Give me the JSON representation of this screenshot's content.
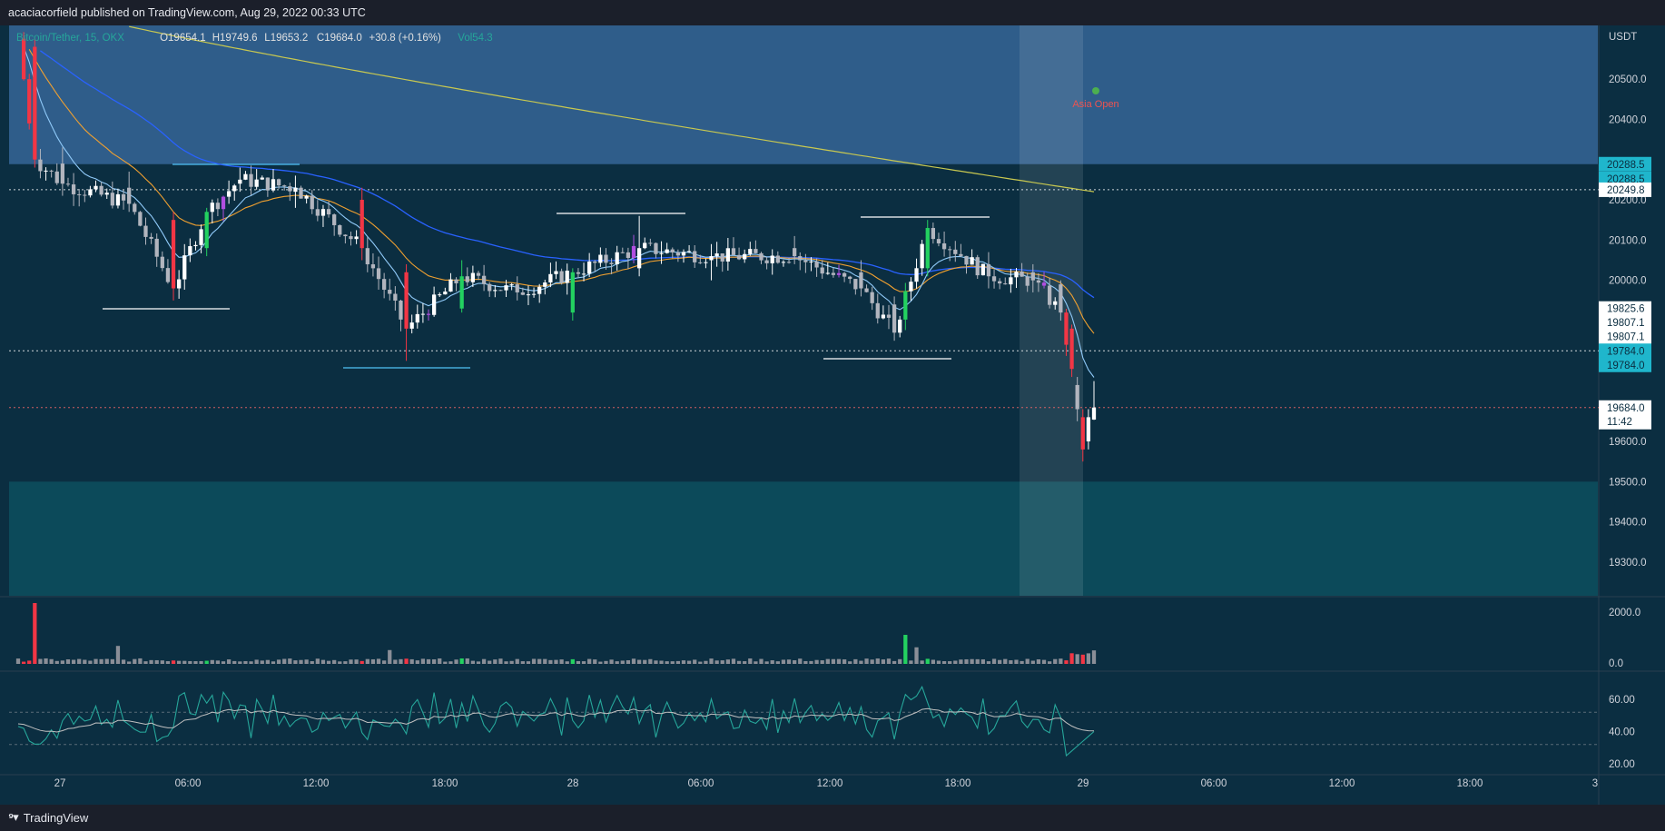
{
  "header": {
    "published_by": "acaciacorfield published on TradingView.com, Aug 29, 2022 00:33 UTC"
  },
  "footer": {
    "brand": "TradingView",
    "logo_icon": "tradingview-logo-icon"
  },
  "colors": {
    "background": "#0b2e41",
    "top_zone": "#2f5d8a",
    "bottom_zone": "#0c4a5a",
    "session_highlight": "#3a5566",
    "bull": "#23d160",
    "bear": "#f23645",
    "neutral": "#b2b5be",
    "white": "#ffffff",
    "purple": "#b14fe0",
    "ema_fast": "#90caf9",
    "ema_mid": "#f0a030",
    "ema_slow": "#2962ff",
    "ema_long": "#c8c850",
    "rsi_line": "#26a69a",
    "rsi_ma": "#c0c0c0",
    "axis_text": "#d1d4dc",
    "badge_cyan": "#1fb6cc"
  },
  "legend": {
    "symbol": "Bitcoin/Tether, 15, OKX",
    "open_label": "O",
    "open": "19654.1",
    "high_label": "H",
    "high": "19749.6",
    "low_label": "L",
    "low": "19653.2",
    "close_label": "C",
    "close": "19684.0",
    "change": "+30.8 (+0.16%)",
    "vol_label": "Vol",
    "vol": "54.3"
  },
  "annotation": {
    "label": "Asia Open"
  },
  "price_axis": {
    "unit": "USDT",
    "ticks": [
      "20500.0",
      "20400.0",
      "20200.0",
      "20100.0",
      "20000.0",
      "19600.0",
      "19500.0",
      "19400.0",
      "19300.0"
    ],
    "badges": [
      {
        "text": "20288.5",
        "price": 20288.5,
        "style": "cyan"
      },
      {
        "text": "20288.5",
        "price": 20252.0,
        "style": "cyan"
      },
      {
        "text": "20249.8",
        "price": 20225.0,
        "style": "white"
      },
      {
        "text": "19825.6",
        "price": 19930.0,
        "style": "white"
      },
      {
        "text": "19807.1",
        "price": 19895.0,
        "style": "white"
      },
      {
        "text": "19807.1",
        "price": 19860.0,
        "style": "white"
      },
      {
        "text": "19784.0",
        "price": 19825.0,
        "style": "cyan"
      },
      {
        "text": "19784.0",
        "price": 19790.0,
        "style": "cyan"
      }
    ],
    "last_price": "19684.0",
    "countdown": "11:42"
  },
  "volume_axis": {
    "ticks": [
      "2000.0",
      "0.0"
    ]
  },
  "rsi_axis": {
    "ticks": [
      "60.00",
      "40.00",
      "20.00"
    ]
  },
  "time_axis": {
    "ticks": [
      "27",
      "06:00",
      "12:00",
      "18:00",
      "28",
      "06:00",
      "12:00",
      "18:00",
      "29",
      "06:00",
      "12:00",
      "18:00",
      "3"
    ]
  },
  "chart_data": {
    "type": "candlestick",
    "symbol": "Bitcoin/Tether",
    "interval": "15",
    "exchange": "OKX",
    "price_range": [
      19230,
      20620
    ],
    "zones": [
      {
        "name": "supply",
        "from": 20288.5,
        "to": 20620
      },
      {
        "name": "demand",
        "from": 19230,
        "to": 19500
      }
    ],
    "horizontal_levels": [
      20249.8,
      19784.0,
      19684.0
    ],
    "ohlc_last": {
      "open": 19654.1,
      "high": 19749.6,
      "low": 19653.2,
      "close": 19684.0,
      "change": 30.8,
      "change_pct": 0.16,
      "volume": 54.3
    },
    "key_points": [
      {
        "t": 0,
        "o": 20620,
        "h": 20640,
        "l": 20580,
        "c": 20600
      },
      {
        "t": 3,
        "o": 20580,
        "h": 20600,
        "l": 20280,
        "c": 20300
      },
      {
        "t": 8,
        "o": 20290,
        "h": 20330,
        "l": 20210,
        "c": 20240
      },
      {
        "t": 20,
        "o": 20230,
        "h": 20270,
        "l": 20170,
        "c": 20190
      },
      {
        "t": 28,
        "o": 20150,
        "h": 20170,
        "l": 19950,
        "c": 19980
      },
      {
        "t": 34,
        "o": 20080,
        "h": 20180,
        "l": 20060,
        "c": 20170
      },
      {
        "t": 40,
        "o": 20240,
        "h": 20280,
        "l": 20220,
        "c": 20250
      },
      {
        "t": 50,
        "o": 20220,
        "h": 20260,
        "l": 20180,
        "c": 20230
      },
      {
        "t": 62,
        "o": 20200,
        "h": 20230,
        "l": 20050,
        "c": 20080
      },
      {
        "t": 70,
        "o": 20020,
        "h": 20040,
        "l": 19800,
        "c": 19880
      },
      {
        "t": 80,
        "o": 19930,
        "h": 20050,
        "l": 19920,
        "c": 20010
      },
      {
        "t": 90,
        "o": 19990,
        "h": 20010,
        "l": 19950,
        "c": 19970
      },
      {
        "t": 100,
        "o": 19920,
        "h": 20030,
        "l": 19900,
        "c": 20020
      },
      {
        "t": 112,
        "o": 20030,
        "h": 20160,
        "l": 20010,
        "c": 20080
      },
      {
        "t": 125,
        "o": 20050,
        "h": 20090,
        "l": 20000,
        "c": 20060
      },
      {
        "t": 140,
        "o": 20080,
        "h": 20110,
        "l": 20040,
        "c": 20060
      },
      {
        "t": 152,
        "o": 20020,
        "h": 20050,
        "l": 19960,
        "c": 19980
      },
      {
        "t": 158,
        "o": 19940,
        "h": 19960,
        "l": 19850,
        "c": 19870
      },
      {
        "t": 164,
        "o": 20030,
        "h": 20150,
        "l": 20010,
        "c": 20130
      },
      {
        "t": 175,
        "o": 20040,
        "h": 20070,
        "l": 19980,
        "c": 20010
      },
      {
        "t": 183,
        "o": 20020,
        "h": 20040,
        "l": 19970,
        "c": 20000
      },
      {
        "t": 188,
        "o": 19990,
        "h": 20000,
        "l": 19900,
        "c": 19920
      },
      {
        "t": 190,
        "o": 19880,
        "h": 19890,
        "l": 19760,
        "c": 19780
      },
      {
        "t": 191,
        "o": 19740,
        "h": 19760,
        "l": 19650,
        "c": 19680
      },
      {
        "t": 192,
        "o": 19660,
        "h": 19680,
        "l": 19550,
        "c": 19580
      },
      {
        "t": 193,
        "o": 19600,
        "h": 19680,
        "l": 19580,
        "c": 19660
      },
      {
        "t": 194,
        "o": 19654.1,
        "h": 19749.6,
        "l": 19653.2,
        "c": 19684.0
      }
    ],
    "volume_peak": 2200,
    "rsi_range": [
      10,
      80
    ],
    "rsi_levels": [
      60,
      40
    ]
  }
}
